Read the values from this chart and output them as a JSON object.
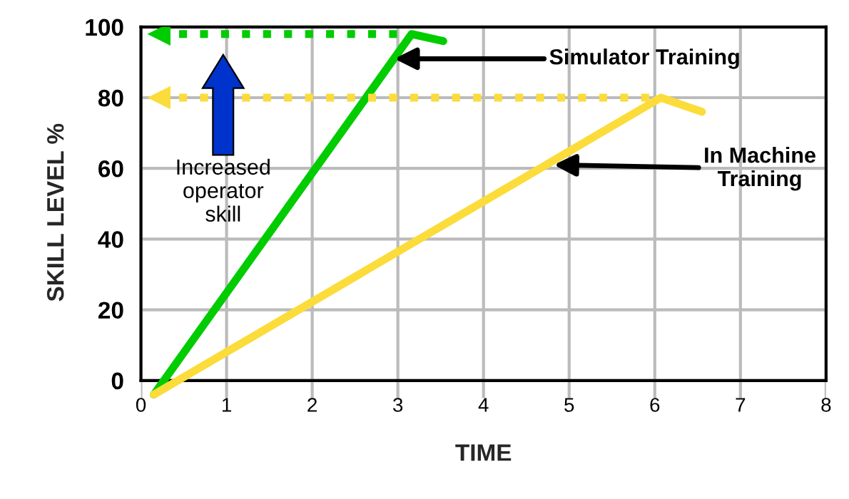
{
  "chart_data": {
    "type": "line",
    "xlabel": "TIME",
    "ylabel": "SKILL LEVEL %",
    "xlim": [
      0,
      8
    ],
    "xticks": [
      0,
      1,
      2,
      3,
      4,
      5,
      6,
      7,
      8
    ],
    "ylim": [
      -5,
      100
    ],
    "yticks": [
      0,
      20,
      40,
      60,
      80,
      100
    ],
    "grid": true,
    "series": [
      {
        "color": "#00cc00",
        "x": [
          0.15,
          3.16,
          3.53
        ],
        "values": [
          -4,
          98,
          96
        ],
        "line_style": "solid"
      },
      {
        "color": "#fbdc3a",
        "x": [
          0.15,
          6.07,
          6.55
        ],
        "values": [
          -4,
          80,
          76
        ],
        "line_style": "solid"
      },
      {
        "color": "#00cc00",
        "x": [
          0.2,
          3.1
        ],
        "values": [
          98,
          98
        ],
        "line_style": "dotted"
      },
      {
        "color": "#fbdc3a",
        "x": [
          0.2,
          6.0
        ],
        "values": [
          80,
          80
        ],
        "line_style": "dotted"
      }
    ],
    "annotations": [
      {
        "text": "Simulator Training",
        "x": 2.96,
        "y": 91
      },
      {
        "text": "In Machine\nTraining",
        "x": 4.82,
        "y": 61
      },
      "Increased\noperator\nskill"
    ]
  }
}
